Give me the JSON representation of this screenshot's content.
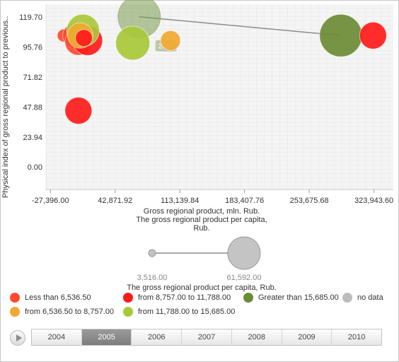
{
  "chart_data": {
    "type": "scatter",
    "subtype": "bubble",
    "ylabel": "Physical index of gross regional product to previous...",
    "xlabel": "Gross regional product, mln. Rub.",
    "size_label": "The gross regional product per capita, Rub.",
    "color_label": "The gross regional product per capita, Rub.",
    "x_ticks": [
      "-27,396.00",
      "42,871.92",
      "113,139.84",
      "183,407.76",
      "253,675.68",
      "323,943.60"
    ],
    "x_tick_values": [
      -27396,
      42871.92,
      113139.84,
      183407.76,
      253675.68,
      323943.6
    ],
    "y_ticks": [
      "0.00",
      "23.94",
      "47.88",
      "71.82",
      "95.76",
      "119.70"
    ],
    "y_tick_values": [
      0,
      23.94,
      47.88,
      71.82,
      95.76,
      119.7
    ],
    "xlim": [
      -33000,
      345000
    ],
    "ylim": [
      -18,
      130
    ],
    "grid": true,
    "legend_placement": "bottom",
    "current_year": "2005",
    "years": [
      "2004",
      "2005",
      "2006",
      "2007",
      "2008",
      "2009",
      "2010"
    ],
    "trail": {
      "label": "2004",
      "from": {
        "x": 69000,
        "y": 120,
        "size": 30
      },
      "to": {
        "x": 288000,
        "y": 105,
        "size": 30
      },
      "color": "#7a9a4e"
    },
    "legend": [
      {
        "label": "Less than 6,536.50",
        "color": "#ff4a2e"
      },
      {
        "label": "from 8,757.00 to 11,788.00",
        "color": "#ff1a1a"
      },
      {
        "label": "Greater than 15,685.00",
        "color": "#6b8b35"
      },
      {
        "label": "no data",
        "color": "#bcbcbc"
      },
      {
        "label": "from 6,536.50 to 8,757.00",
        "color": "#f0a830"
      },
      {
        "label": "from 11,788.00 to 15,685.00",
        "color": "#a8c83a"
      }
    ],
    "size_scale": {
      "min_label": "3,516.00",
      "max_label": "61,592.00"
    },
    "points": [
      {
        "x": -13000,
        "y": 105,
        "size": 9,
        "color": "#ff4a2e"
      },
      {
        "x": -1000,
        "y": 105,
        "size": 17,
        "color": "#ff4a2e"
      },
      {
        "x": 3000,
        "y": 100,
        "size": 19,
        "color": "#ff4a2e"
      },
      {
        "x": 13000,
        "y": 101,
        "size": 21,
        "color": "#ff1a1a"
      },
      {
        "x": 8000,
        "y": 109,
        "size": 23,
        "color": "#a8c83a"
      },
      {
        "x": 5000,
        "y": 105,
        "size": 18,
        "color": "#f0a830"
      },
      {
        "x": 9000,
        "y": 103,
        "size": 12,
        "color": "#ff1a1a"
      },
      {
        "x": 3000,
        "y": 45,
        "size": 19,
        "color": "#ff1a1a"
      },
      {
        "x": 62000,
        "y": 99,
        "size": 24,
        "color": "#a8c83a"
      },
      {
        "x": 103000,
        "y": 101,
        "size": 14,
        "color": "#f0a830"
      },
      {
        "x": 288000,
        "y": 105,
        "size": 30,
        "color": "#6b8b35"
      },
      {
        "x": 323000,
        "y": 105,
        "size": 19,
        "color": "#ff1a1a"
      }
    ]
  }
}
